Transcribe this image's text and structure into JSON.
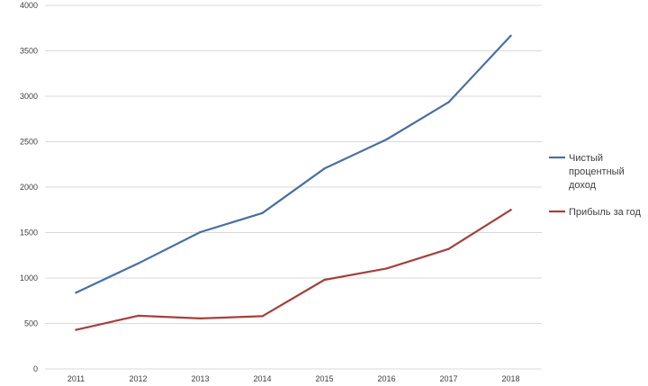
{
  "chart_data": {
    "type": "line",
    "title": "",
    "xlabel": "",
    "ylabel": "",
    "categories": [
      "2011",
      "2012",
      "2013",
      "2014",
      "2015",
      "2016",
      "2017",
      "2018"
    ],
    "ylim": [
      0,
      4000
    ],
    "yticks": [
      "0",
      "500",
      "1000",
      "1500",
      "2000",
      "2500",
      "3000",
      "3500",
      "4000"
    ],
    "grid": true,
    "legend_position": "right",
    "series": [
      {
        "name": "Чистый процентный доход",
        "name_lines": [
          "Чистый",
          "процентный",
          "доход"
        ],
        "color": "#4a6fa5",
        "values": [
          840,
          1160,
          1505,
          1715,
          2205,
          2525,
          2935,
          3665
        ]
      },
      {
        "name": "Прибыль за год",
        "name_lines": [
          "Прибыль за год"
        ],
        "color": "#a5403c",
        "values": [
          430,
          585,
          555,
          580,
          980,
          1105,
          1320,
          1750
        ]
      }
    ]
  }
}
